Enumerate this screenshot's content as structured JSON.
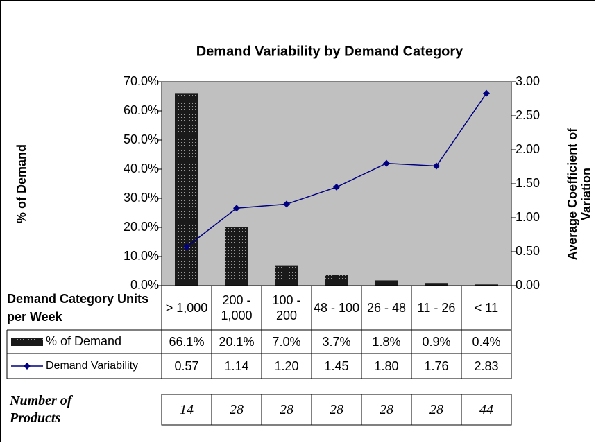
{
  "chart_data": {
    "type": "bar+line",
    "title": "Demand Variability by Demand Category",
    "y_label": "% of Demand",
    "y2_label": "Average Coefficient of Variation",
    "x_label": "Demand Category Units per Week",
    "categories": [
      "> 1,000",
      "200 - 1,000",
      "100 - 200",
      "48 - 100",
      "26 - 48",
      "11 - 26",
      "< 11"
    ],
    "series": [
      {
        "name": "% of Demand",
        "type": "bar",
        "color": "#1a1a1a",
        "values": [
          66.1,
          20.1,
          7.0,
          3.7,
          1.8,
          0.9,
          0.4
        ],
        "value_labels": [
          "66.1%",
          "20.1%",
          "7.0%",
          "3.7%",
          "1.8%",
          "0.9%",
          "0.4%"
        ]
      },
      {
        "name": "Demand Variability",
        "type": "line",
        "axis": "y2",
        "color": "#000080",
        "values": [
          0.57,
          1.14,
          1.2,
          1.45,
          1.8,
          1.76,
          2.83
        ],
        "value_labels": [
          "0.57",
          "1.14",
          "1.20",
          "1.45",
          "1.80",
          "1.76",
          "2.83"
        ]
      }
    ],
    "ylim": [
      0,
      70
    ],
    "yticks": [
      {
        "value": 0,
        "label": "0.0%"
      },
      {
        "value": 10,
        "label": "10.0%"
      },
      {
        "value": 20,
        "label": "20.0%"
      },
      {
        "value": 30,
        "label": "30.0%"
      },
      {
        "value": 40,
        "label": "40.0%"
      },
      {
        "value": 50,
        "label": "50.0%"
      },
      {
        "value": 60,
        "label": "60.0%"
      },
      {
        "value": 70,
        "label": "70.0%"
      }
    ],
    "y2lim": [
      0,
      3
    ],
    "y2ticks": [
      {
        "value": 0,
        "label": "0.00"
      },
      {
        "value": 0.5,
        "label": "0.50"
      },
      {
        "value": 1,
        "label": "1.00"
      },
      {
        "value": 1.5,
        "label": "1.50"
      },
      {
        "value": 2,
        "label": "2.00"
      },
      {
        "value": 2.5,
        "label": "2.50"
      },
      {
        "value": 3,
        "label": "3.00"
      }
    ],
    "grid": false,
    "plot_background": "#c0c0c0",
    "products": {
      "label": "Number of Products",
      "values": [
        14,
        28,
        28,
        28,
        28,
        28,
        44
      ]
    }
  }
}
